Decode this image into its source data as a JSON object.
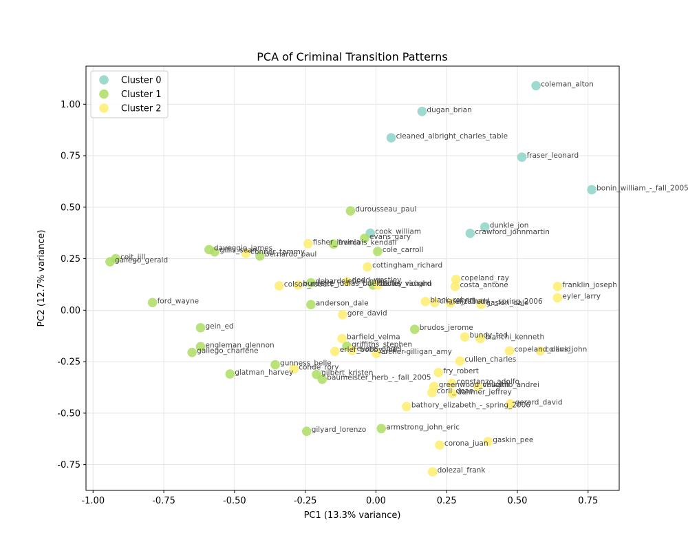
{
  "chart_data": {
    "type": "scatter",
    "title": "PCA of Criminal Transition Patterns",
    "xlabel": "PC1 (13.3% variance)",
    "ylabel": "PC2 (12.7% variance)",
    "xlim": [
      -1.025,
      0.86
    ],
    "ylim": [
      -0.875,
      1.185
    ],
    "xticks": [
      "-1.00",
      "-0.75",
      "-0.50",
      "-0.25",
      "0.00",
      "0.25",
      "0.50",
      "0.75"
    ],
    "xtick_values": [
      -1.0,
      -0.75,
      -0.5,
      -0.25,
      0.0,
      0.25,
      0.5,
      0.75
    ],
    "yticks": [
      "-0.75",
      "-0.50",
      "-0.25",
      "0.00",
      "0.25",
      "0.50",
      "0.75",
      "1.00"
    ],
    "ytick_values": [
      -0.75,
      -0.5,
      -0.25,
      0.0,
      0.25,
      0.5,
      0.75,
      1.0
    ],
    "grid": true,
    "legend_position": "top-left",
    "series": [
      {
        "name": "Cluster 0",
        "color": "#8dd3c7",
        "points": [
          {
            "x": 0.566,
            "y": 1.09,
            "label": "coleman_alton"
          },
          {
            "x": 0.163,
            "y": 0.965,
            "label": "dugan_brian"
          },
          {
            "x": 0.054,
            "y": 0.837,
            "label": "cleaned_albright_charles_table"
          },
          {
            "x": 0.516,
            "y": 0.743,
            "label": "fraser_leonard"
          },
          {
            "x": 0.763,
            "y": 0.585,
            "label": "bonin_william_-_fall_2005"
          },
          {
            "x": 0.385,
            "y": 0.404,
            "label": "dunkle_jon"
          },
          {
            "x": 0.333,
            "y": 0.373,
            "label": "crawford_johnmartin"
          },
          {
            "x": -0.02,
            "y": 0.374,
            "label": "cook_william"
          }
        ]
      },
      {
        "name": "Cluster 1",
        "color": "#addd63",
        "points": [
          {
            "x": -0.09,
            "y": 0.482,
            "label": "durousseau_paul"
          },
          {
            "x": -0.04,
            "y": 0.349,
            "label": "evans_gary"
          },
          {
            "x": -0.15,
            "y": 0.321,
            "label": "francois_kendall"
          },
          {
            "x": 0.006,
            "y": 0.285,
            "label": "cole_carroll"
          },
          {
            "x": -0.59,
            "y": 0.294,
            "label": "daveggio_james"
          },
          {
            "x": -0.57,
            "y": 0.283,
            "label": "gillis_sean"
          },
          {
            "x": -0.41,
            "y": 0.263,
            "label": "bernardo_paul"
          },
          {
            "x": -0.92,
            "y": 0.25,
            "label": "coit_jill"
          },
          {
            "x": -0.94,
            "y": 0.235,
            "label": "gallego_gerald"
          },
          {
            "x": -0.23,
            "y": 0.133,
            "label": "debardeleben_mike"
          },
          {
            "x": -0.01,
            "y": 0.122,
            "label": "dudley_richard"
          },
          {
            "x": -0.79,
            "y": 0.037,
            "label": "ford_wayne"
          },
          {
            "x": -0.23,
            "y": 0.027,
            "label": "anderson_dale"
          },
          {
            "x": -0.62,
            "y": -0.085,
            "label": "gein_ed"
          },
          {
            "x": 0.137,
            "y": -0.093,
            "label": "brudos_jerome"
          },
          {
            "x": -0.62,
            "y": -0.177,
            "label": "engleman_glennon"
          },
          {
            "x": -0.65,
            "y": -0.205,
            "label": "gallego_charlene"
          },
          {
            "x": -0.103,
            "y": -0.175,
            "label": "griffiths_stephen"
          },
          {
            "x": -0.356,
            "y": -0.265,
            "label": "gunness_belle"
          },
          {
            "x": -0.21,
            "y": -0.312,
            "label": "gilbert_kristen"
          },
          {
            "x": -0.516,
            "y": -0.31,
            "label": "glatman_harvey"
          },
          {
            "x": -0.19,
            "y": -0.335,
            "label": "baumeister_herb_-_fall_2005"
          },
          {
            "x": 0.019,
            "y": -0.575,
            "label": "armstrong_john_eric"
          },
          {
            "x": -0.245,
            "y": -0.588,
            "label": "gilyard_lorenzo"
          }
        ]
      },
      {
        "name": "Cluster 2",
        "color": "#ffed6f",
        "points": [
          {
            "x": -0.24,
            "y": 0.323,
            "label": "fisher_lavinia"
          },
          {
            "x": -0.46,
            "y": 0.276,
            "label": "conner_tammy"
          },
          {
            "x": -0.03,
            "y": 0.21,
            "label": "cottingham_richard"
          },
          {
            "x": 0.283,
            "y": 0.149,
            "label": "copeland_ray"
          },
          {
            "x": 0.28,
            "y": 0.115,
            "label": "costa_antone"
          },
          {
            "x": 0.642,
            "y": 0.115,
            "label": "franklin_joseph"
          },
          {
            "x": 0.642,
            "y": 0.06,
            "label": "eyler_larry"
          },
          {
            "x": -0.342,
            "y": 0.118,
            "label": "colson_robert"
          },
          {
            "x": -0.275,
            "y": 0.122,
            "label": "burdette_judias_buenoano"
          },
          {
            "x": -0.102,
            "y": 0.138,
            "label": "dodd_westley"
          },
          {
            "x": 0.007,
            "y": 0.122,
            "label": "butts_vaughn"
          },
          {
            "x": 0.175,
            "y": 0.042,
            "label": "black_robert"
          },
          {
            "x": 0.208,
            "y": 0.037,
            "label": "chase_richard"
          },
          {
            "x": 0.263,
            "y": 0.035,
            "label": "elizabeth_-_spring_2006"
          },
          {
            "x": 0.372,
            "y": 0.028,
            "label": "gaskin_dale"
          },
          {
            "x": -0.118,
            "y": -0.022,
            "label": "gore_david"
          },
          {
            "x": -0.12,
            "y": -0.138,
            "label": "barfield_velma"
          },
          {
            "x": 0.314,
            "y": -0.13,
            "label": "bundy_ted"
          },
          {
            "x": 0.369,
            "y": -0.138,
            "label": "bianchi_kenneth"
          },
          {
            "x": 0.472,
            "y": -0.198,
            "label": "copeland_david"
          },
          {
            "x": 0.581,
            "y": -0.198,
            "label": "collins_john"
          },
          {
            "x": -0.145,
            "y": -0.2,
            "label": "erler_bobby_joe"
          },
          {
            "x": -0.085,
            "y": -0.195,
            "label": "evans_angel"
          },
          {
            "x": 0.001,
            "y": -0.21,
            "label": "archer-gilligan_amy"
          },
          {
            "x": 0.297,
            "y": -0.247,
            "label": "cullen_charles"
          },
          {
            "x": -0.29,
            "y": -0.285,
            "label": "conde_rory"
          },
          {
            "x": 0.221,
            "y": -0.303,
            "label": "fry_robert"
          },
          {
            "x": 0.268,
            "y": -0.355,
            "label": "constanzo_adolfo"
          },
          {
            "x": 0.205,
            "y": -0.37,
            "label": "greenwood_vaughn"
          },
          {
            "x": 0.36,
            "y": -0.37,
            "label": "chikatilo_andrei"
          },
          {
            "x": 0.198,
            "y": -0.4,
            "label": "corll_dean"
          },
          {
            "x": 0.27,
            "y": -0.405,
            "label": "dahmer_jeffrey"
          },
          {
            "x": 0.475,
            "y": -0.455,
            "label": "gerard_david"
          },
          {
            "x": 0.108,
            "y": -0.468,
            "label": "bathory_elizabeth_-_spring_2006"
          },
          {
            "x": 0.396,
            "y": -0.638,
            "label": "gaskin_pee"
          },
          {
            "x": 0.225,
            "y": -0.655,
            "label": "corona_juan"
          },
          {
            "x": 0.2,
            "y": -0.785,
            "label": "dolezal_frank"
          }
        ]
      }
    ]
  }
}
